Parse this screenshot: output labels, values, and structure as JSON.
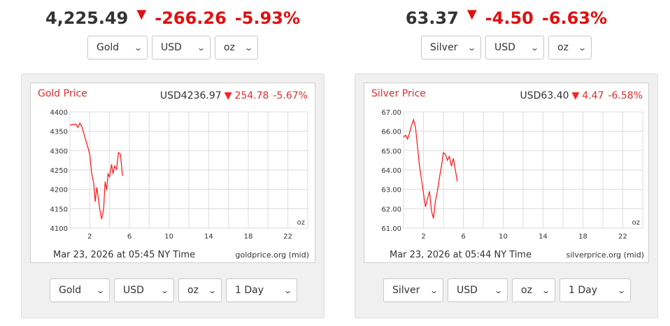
{
  "gold": {
    "headline": {
      "price": "4,225.49",
      "change": "-266.26",
      "percent": "-5.93%"
    },
    "top_selects": {
      "metal": "Gold",
      "currency": "USD",
      "unit": "oz"
    },
    "chart": {
      "title": "Gold Price",
      "currency_price": "USD4236.97",
      "change": "254.78",
      "percent": "-5.67%",
      "unit_label": "oz",
      "footer_time": "Mar 23, 2026 at 05:45 NY Time",
      "footer_source": "goldprice.org (mid)"
    },
    "bottom_selects": {
      "metal": "Gold",
      "currency": "USD",
      "unit": "oz",
      "period": "1 Day"
    }
  },
  "silver": {
    "headline": {
      "price": "63.37",
      "change": "-4.50",
      "percent": "-6.63%"
    },
    "top_selects": {
      "metal": "Silver",
      "currency": "USD",
      "unit": "oz"
    },
    "chart": {
      "title": "Silver Price",
      "currency_price": "USD63.40",
      "change": "4.47",
      "percent": "-6.58%",
      "unit_label": "oz",
      "footer_time": "Mar 23, 2026 at 05:44 NY Time",
      "footer_source": "silverprice.org (mid)"
    },
    "bottom_selects": {
      "metal": "Silver",
      "currency": "USD",
      "unit": "oz",
      "period": "1 Day"
    }
  },
  "colors": {
    "up_down_red": "#e01010",
    "chart_title_red": "#e03030",
    "line_red": "#ff2020",
    "panel_bg": "#f0f0f0"
  },
  "icons": {
    "down_arrow": "triangle-down-icon",
    "select_chevron": "chevron-down-icon"
  },
  "chart_data": [
    {
      "type": "line",
      "title": "Gold Price",
      "series": [
        {
          "values": [
            [
              0.0,
              4366
            ],
            [
              0.2,
              4367
            ],
            [
              0.4,
              4368
            ],
            [
              0.6,
              4368
            ],
            [
              0.8,
              4360
            ],
            [
              1.0,
              4371
            ],
            [
              1.2,
              4362
            ],
            [
              1.4,
              4345
            ],
            [
              1.6,
              4326
            ],
            [
              1.8,
              4310
            ],
            [
              2.0,
              4290
            ],
            [
              2.2,
              4240
            ],
            [
              2.4,
              4216
            ],
            [
              2.55,
              4168
            ],
            [
              2.7,
              4205
            ],
            [
              2.85,
              4180
            ],
            [
              3.0,
              4150
            ],
            [
              3.2,
              4123
            ],
            [
              3.4,
              4150
            ],
            [
              3.55,
              4220
            ],
            [
              3.7,
              4198
            ],
            [
              3.85,
              4240
            ],
            [
              4.0,
              4232
            ],
            [
              4.2,
              4265
            ],
            [
              4.35,
              4240
            ],
            [
              4.5,
              4260
            ],
            [
              4.7,
              4252
            ],
            [
              4.9,
              4295
            ],
            [
              5.1,
              4290
            ],
            [
              5.3,
              4235
            ]
          ]
        }
      ],
      "xticks": [
        2,
        6,
        10,
        14,
        18,
        22
      ],
      "xlim": [
        0,
        24
      ],
      "yticks": [
        4100,
        4150,
        4200,
        4250,
        4300,
        4350,
        4400
      ],
      "ylim": [
        4100,
        4400
      ],
      "unit": "oz",
      "grid": true
    },
    {
      "type": "line",
      "title": "Silver Price",
      "series": [
        {
          "values": [
            [
              0.0,
              65.7
            ],
            [
              0.2,
              65.8
            ],
            [
              0.4,
              65.6
            ],
            [
              0.6,
              65.9
            ],
            [
              0.8,
              66.3
            ],
            [
              1.0,
              66.6
            ],
            [
              1.2,
              66.2
            ],
            [
              1.4,
              65.2
            ],
            [
              1.6,
              64.2
            ],
            [
              1.8,
              63.5
            ],
            [
              2.0,
              62.8
            ],
            [
              2.2,
              62.1
            ],
            [
              2.4,
              62.5
            ],
            [
              2.6,
              62.9
            ],
            [
              2.8,
              61.9
            ],
            [
              3.0,
              61.5
            ],
            [
              3.2,
              62.4
            ],
            [
              3.4,
              62.9
            ],
            [
              3.6,
              63.6
            ],
            [
              3.8,
              64.2
            ],
            [
              4.0,
              64.9
            ],
            [
              4.2,
              64.8
            ],
            [
              4.4,
              64.5
            ],
            [
              4.6,
              64.7
            ],
            [
              4.8,
              64.2
            ],
            [
              5.0,
              64.6
            ],
            [
              5.2,
              64.0
            ],
            [
              5.4,
              63.4
            ]
          ]
        }
      ],
      "xticks": [
        2,
        6,
        10,
        14,
        18,
        22
      ],
      "xlim": [
        0,
        24
      ],
      "yticks": [
        "61.00",
        "62.00",
        "63.00",
        "64.00",
        "65.00",
        "66.00",
        "67.00"
      ],
      "ylim": [
        61,
        67
      ],
      "unit": "oz",
      "grid": true
    }
  ]
}
